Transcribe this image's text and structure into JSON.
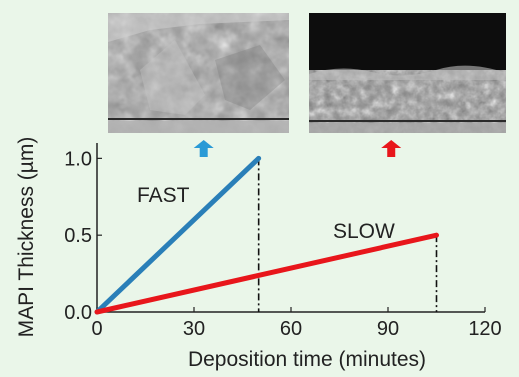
{
  "background_color": "#eaf6e9",
  "chart_data": {
    "type": "line",
    "xlabel": "Deposition time (minutes)",
    "ylabel": "MAPI Thickness (µm)",
    "xlim": [
      0,
      120
    ],
    "ylim": [
      0,
      1.1
    ],
    "x_ticks": [
      0,
      30,
      60,
      90,
      120
    ],
    "y_ticks": [
      0.0,
      0.5,
      1.0
    ],
    "x_tick_labels": [
      "0",
      "30",
      "60",
      "90",
      "120"
    ],
    "y_tick_labels": [
      "0.0",
      "0.5",
      "1.0"
    ],
    "grid": false,
    "series": [
      {
        "name": "FAST",
        "x": [
          0,
          50
        ],
        "y": [
          0,
          1.0
        ],
        "color": "#2a7fb8"
      },
      {
        "name": "SLOW",
        "x": [
          0,
          105
        ],
        "y": [
          0,
          0.5
        ],
        "color": "#e8161b"
      }
    ],
    "endpoint_markers": [
      {
        "x": 50,
        "style": "dash-dot",
        "color": "#111111"
      },
      {
        "x": 105,
        "style": "dash-dot",
        "color": "#111111"
      }
    ],
    "inset_images": [
      {
        "kind": "SEM cross-section micrograph",
        "linked_series": "FAST",
        "arrow_x": 33,
        "arrow_color": "#2a9ad6"
      },
      {
        "kind": "SEM cross-section micrograph",
        "linked_series": "SLOW",
        "arrow_x": 91,
        "arrow_color": "#e8161b"
      }
    ]
  }
}
